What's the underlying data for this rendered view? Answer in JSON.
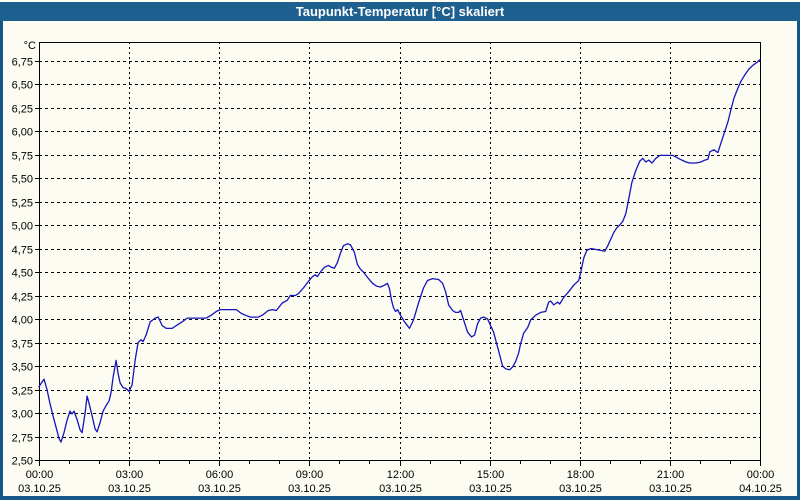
{
  "window": {
    "title": "Taupunkt-Temperatur [°C] skaliert"
  },
  "colors": {
    "title_bar": "#1D5F8F",
    "window_border": "#17568A",
    "background": "#FCFCF2",
    "line": "#1414BE",
    "grid": "#000000",
    "text": "#000000"
  },
  "chart_data": {
    "type": "line",
    "title": "Taupunkt-Temperatur [°C] skaliert",
    "grid": true,
    "legend_position": "none",
    "y_axis": {
      "unit": "°C",
      "min": 2.5,
      "max": 6.75,
      "step": 0.25,
      "decimal_separator": ",",
      "tick_labels": [
        "2,50",
        "2,75",
        "3,00",
        "3,25",
        "3,50",
        "3,75",
        "4,00",
        "4,25",
        "4,50",
        "4,75",
        "5,00",
        "5,25",
        "5,50",
        "5,75",
        "6,00",
        "6,25",
        "6,50",
        "6,75"
      ]
    },
    "x_axis": {
      "total_minutes": 1440,
      "minor_tick_minutes": 60,
      "major_tick_minutes": 180,
      "ticks": [
        {
          "t": 0,
          "time": "00:00",
          "date": "03.10.25"
        },
        {
          "t": 180,
          "time": "03:00",
          "date": "03.10.25"
        },
        {
          "t": 360,
          "time": "06:00",
          "date": "03.10.25"
        },
        {
          "t": 540,
          "time": "09:00",
          "date": "03.10.25"
        },
        {
          "t": 720,
          "time": "12:00",
          "date": "03.10.25"
        },
        {
          "t": 900,
          "time": "15:00",
          "date": "03.10.25"
        },
        {
          "t": 1080,
          "time": "18:00",
          "date": "03.10.25"
        },
        {
          "t": 1260,
          "time": "21:00",
          "date": "03.10.25"
        },
        {
          "t": 1440,
          "time": "00:00",
          "date": "04.10.25"
        }
      ]
    },
    "series": [
      {
        "name": "Taupunkt-Temperatur",
        "color": "#1414BE",
        "points": [
          [
            0,
            3.28
          ],
          [
            6,
            3.33
          ],
          [
            10,
            3.36
          ],
          [
            16,
            3.25
          ],
          [
            22,
            3.1
          ],
          [
            28,
            2.97
          ],
          [
            34,
            2.85
          ],
          [
            40,
            2.73
          ],
          [
            44,
            2.69
          ],
          [
            50,
            2.79
          ],
          [
            56,
            2.92
          ],
          [
            62,
            3.02
          ],
          [
            66,
            2.99
          ],
          [
            70,
            3.02
          ],
          [
            76,
            2.93
          ],
          [
            82,
            2.82
          ],
          [
            86,
            2.79
          ],
          [
            92,
            3.0
          ],
          [
            96,
            3.18
          ],
          [
            100,
            3.1
          ],
          [
            106,
            2.97
          ],
          [
            112,
            2.83
          ],
          [
            116,
            2.8
          ],
          [
            122,
            2.9
          ],
          [
            128,
            3.02
          ],
          [
            134,
            3.08
          ],
          [
            140,
            3.13
          ],
          [
            144,
            3.22
          ],
          [
            148,
            3.38
          ],
          [
            154,
            3.56
          ],
          [
            158,
            3.42
          ],
          [
            162,
            3.32
          ],
          [
            168,
            3.27
          ],
          [
            174,
            3.26
          ],
          [
            180,
            3.23
          ],
          [
            186,
            3.3
          ],
          [
            192,
            3.56
          ],
          [
            198,
            3.75
          ],
          [
            204,
            3.78
          ],
          [
            208,
            3.76
          ],
          [
            214,
            3.83
          ],
          [
            222,
            3.97
          ],
          [
            232,
            4.01
          ],
          [
            238,
            4.02
          ],
          [
            246,
            3.93
          ],
          [
            254,
            3.9
          ],
          [
            266,
            3.9
          ],
          [
            274,
            3.93
          ],
          [
            286,
            3.97
          ],
          [
            296,
            4.01
          ],
          [
            314,
            4.01
          ],
          [
            334,
            4.01
          ],
          [
            344,
            4.04
          ],
          [
            354,
            4.08
          ],
          [
            362,
            4.1
          ],
          [
            380,
            4.1
          ],
          [
            394,
            4.1
          ],
          [
            404,
            4.06
          ],
          [
            412,
            4.04
          ],
          [
            422,
            4.02
          ],
          [
            438,
            4.02
          ],
          [
            446,
            4.04
          ],
          [
            458,
            4.09
          ],
          [
            466,
            4.1
          ],
          [
            474,
            4.09
          ],
          [
            486,
            4.17
          ],
          [
            496,
            4.2
          ],
          [
            502,
            4.25
          ],
          [
            512,
            4.25
          ],
          [
            518,
            4.27
          ],
          [
            528,
            4.33
          ],
          [
            538,
            4.4
          ],
          [
            546,
            4.45
          ],
          [
            552,
            4.47
          ],
          [
            556,
            4.45
          ],
          [
            562,
            4.5
          ],
          [
            570,
            4.55
          ],
          [
            578,
            4.57
          ],
          [
            584,
            4.55
          ],
          [
            590,
            4.54
          ],
          [
            596,
            4.6
          ],
          [
            602,
            4.7
          ],
          [
            608,
            4.78
          ],
          [
            616,
            4.8
          ],
          [
            622,
            4.79
          ],
          [
            630,
            4.71
          ],
          [
            636,
            4.58
          ],
          [
            642,
            4.53
          ],
          [
            648,
            4.5
          ],
          [
            658,
            4.43
          ],
          [
            666,
            4.38
          ],
          [
            674,
            4.35
          ],
          [
            682,
            4.34
          ],
          [
            690,
            4.36
          ],
          [
            696,
            4.38
          ],
          [
            700,
            4.32
          ],
          [
            704,
            4.2
          ],
          [
            708,
            4.12
          ],
          [
            712,
            4.08
          ],
          [
            716,
            4.1
          ],
          [
            722,
            4.04
          ],
          [
            730,
            3.97
          ],
          [
            740,
            3.9
          ],
          [
            748,
            3.99
          ],
          [
            758,
            4.17
          ],
          [
            768,
            4.33
          ],
          [
            776,
            4.41
          ],
          [
            786,
            4.43
          ],
          [
            798,
            4.42
          ],
          [
            806,
            4.38
          ],
          [
            812,
            4.29
          ],
          [
            818,
            4.15
          ],
          [
            826,
            4.09
          ],
          [
            832,
            4.07
          ],
          [
            838,
            4.07
          ],
          [
            842,
            4.09
          ],
          [
            848,
            3.99
          ],
          [
            856,
            3.86
          ],
          [
            864,
            3.81
          ],
          [
            870,
            3.83
          ],
          [
            876,
            3.95
          ],
          [
            882,
            4.01
          ],
          [
            888,
            4.02
          ],
          [
            896,
            4.0
          ],
          [
            902,
            3.93
          ],
          [
            908,
            3.86
          ],
          [
            914,
            3.74
          ],
          [
            920,
            3.62
          ],
          [
            926,
            3.5
          ],
          [
            932,
            3.47
          ],
          [
            940,
            3.46
          ],
          [
            946,
            3.49
          ],
          [
            952,
            3.55
          ],
          [
            958,
            3.64
          ],
          [
            962,
            3.74
          ],
          [
            968,
            3.85
          ],
          [
            976,
            3.91
          ],
          [
            982,
            3.99
          ],
          [
            992,
            4.04
          ],
          [
            1002,
            4.07
          ],
          [
            1012,
            4.08
          ],
          [
            1018,
            4.18
          ],
          [
            1022,
            4.19
          ],
          [
            1028,
            4.15
          ],
          [
            1036,
            4.18
          ],
          [
            1040,
            4.16
          ],
          [
            1048,
            4.23
          ],
          [
            1058,
            4.29
          ],
          [
            1068,
            4.36
          ],
          [
            1078,
            4.41
          ],
          [
            1082,
            4.5
          ],
          [
            1088,
            4.65
          ],
          [
            1094,
            4.73
          ],
          [
            1102,
            4.75
          ],
          [
            1122,
            4.73
          ],
          [
            1130,
            4.72
          ],
          [
            1136,
            4.78
          ],
          [
            1142,
            4.85
          ],
          [
            1148,
            4.92
          ],
          [
            1154,
            4.97
          ],
          [
            1160,
            5.0
          ],
          [
            1166,
            5.04
          ],
          [
            1172,
            5.12
          ],
          [
            1178,
            5.28
          ],
          [
            1184,
            5.45
          ],
          [
            1192,
            5.58
          ],
          [
            1200,
            5.68
          ],
          [
            1206,
            5.71
          ],
          [
            1212,
            5.67
          ],
          [
            1218,
            5.69
          ],
          [
            1224,
            5.66
          ],
          [
            1232,
            5.71
          ],
          [
            1240,
            5.74
          ],
          [
            1266,
            5.74
          ],
          [
            1280,
            5.7
          ],
          [
            1292,
            5.67
          ],
          [
            1300,
            5.66
          ],
          [
            1312,
            5.66
          ],
          [
            1322,
            5.67
          ],
          [
            1330,
            5.69
          ],
          [
            1336,
            5.7
          ],
          [
            1340,
            5.78
          ],
          [
            1348,
            5.8
          ],
          [
            1356,
            5.77
          ],
          [
            1362,
            5.87
          ],
          [
            1368,
            5.97
          ],
          [
            1376,
            6.1
          ],
          [
            1382,
            6.23
          ],
          [
            1388,
            6.35
          ],
          [
            1396,
            6.46
          ],
          [
            1402,
            6.53
          ],
          [
            1410,
            6.6
          ],
          [
            1418,
            6.66
          ],
          [
            1426,
            6.7
          ],
          [
            1434,
            6.73
          ],
          [
            1440,
            6.76
          ]
        ]
      }
    ]
  }
}
